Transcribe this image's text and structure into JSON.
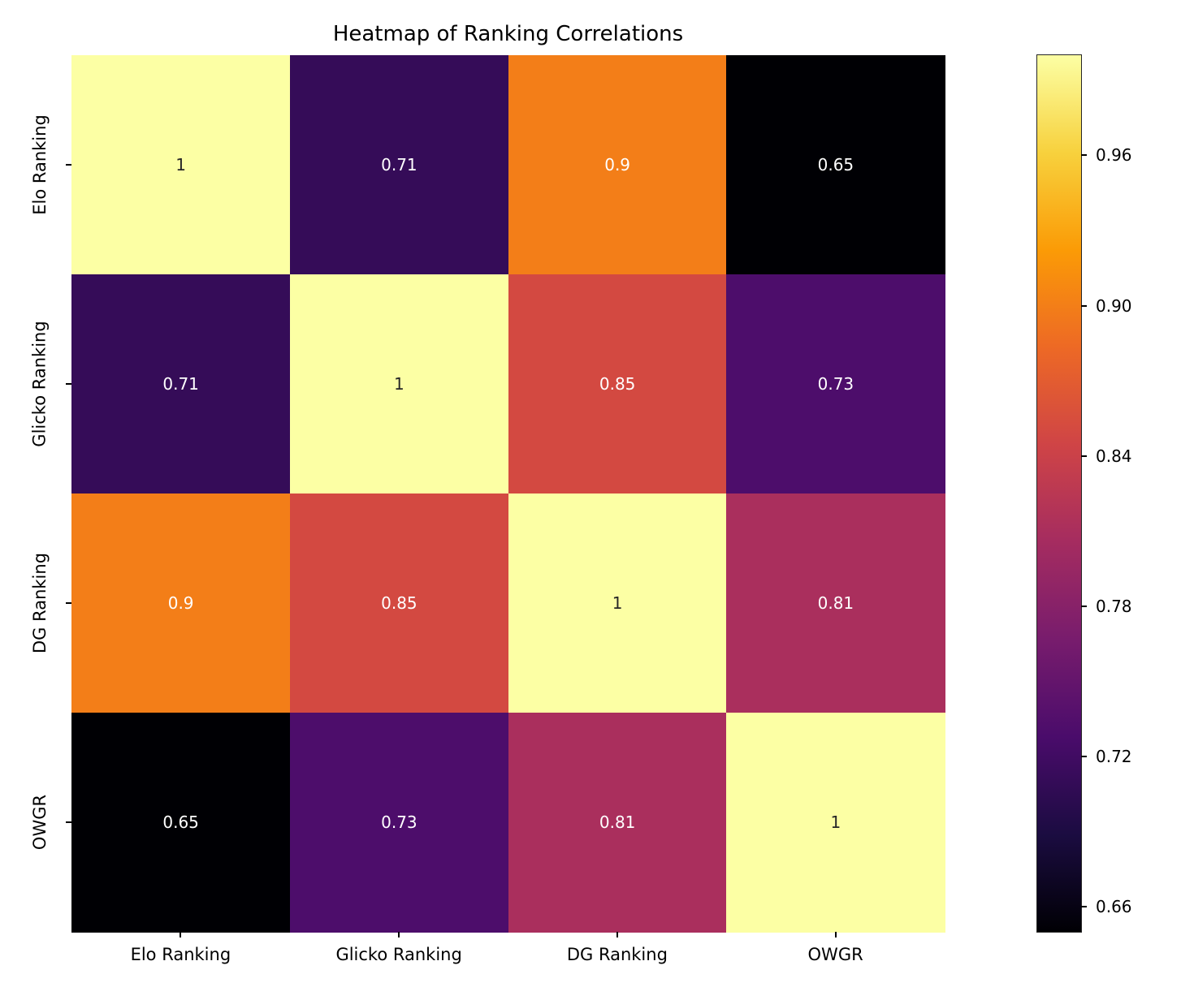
{
  "chart_data": {
    "type": "heatmap",
    "title": "Heatmap of Ranking Correlations",
    "categories": [
      "Elo Ranking",
      "Glicko Ranking",
      "DG Ranking",
      "OWGR"
    ],
    "matrix": [
      [
        1,
        0.71,
        0.9,
        0.65
      ],
      [
        0.71,
        1,
        0.85,
        0.73
      ],
      [
        0.9,
        0.85,
        1,
        0.81
      ],
      [
        0.65,
        0.73,
        0.81,
        1
      ]
    ],
    "vmin": 0.65,
    "vmax": 1.0,
    "colormap": {
      "name": "inferno",
      "stops": [
        "#000004",
        "#1b0c41",
        "#4a0c6b",
        "#781c6d",
        "#a52c60",
        "#cf4446",
        "#ed6925",
        "#fb9b06",
        "#f7d13d",
        "#fcffa4"
      ]
    },
    "colorbar_ticks": [
      {
        "label": "0.96",
        "value": 0.96
      },
      {
        "label": "0.90",
        "value": 0.9
      },
      {
        "label": "0.84",
        "value": 0.84
      },
      {
        "label": "0.78",
        "value": 0.78
      },
      {
        "label": "0.72",
        "value": 0.72
      },
      {
        "label": "0.66",
        "value": 0.66
      }
    ],
    "annotation_colors": {
      "on_light": "#262626",
      "on_dark": "#ffffff"
    },
    "background": "#ffffff",
    "legend_position": "right-colorbar",
    "grid": false,
    "xlabel": "",
    "ylabel": ""
  }
}
